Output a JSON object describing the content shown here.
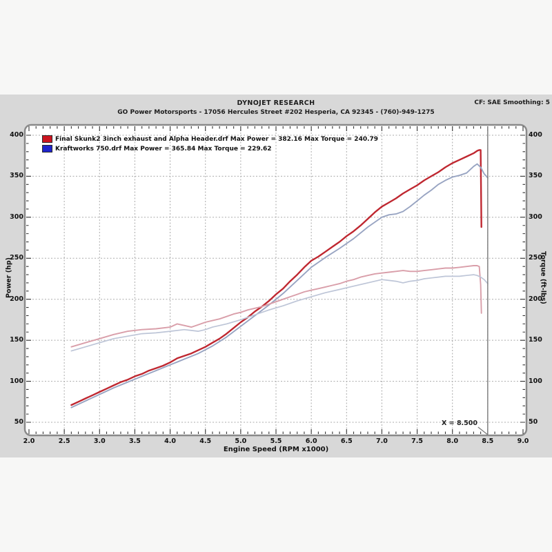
{
  "header": {
    "title": "DYNOJET RESEARCH",
    "subtitle": "GO Power Motorsports - 17056 Hercules Street #202 Hesperia, CA 92345 - (760)-949-1275",
    "meta": "CF: SAE  Smoothing: 5"
  },
  "legend": {
    "entries": [
      {
        "label": "Final Skunk2 3inch exhaust and Alpha Header.drf Max Power = 382.16 Max Torque = 240.79",
        "swatch": "#cc1420"
      },
      {
        "label": "Kraftworks 750.drf Max Power = 365.84 Max Torque = 229.62",
        "swatch": "#1f24cc"
      }
    ]
  },
  "colors": {
    "panel": "#d8d8d8",
    "plot_bg": "#ffffff",
    "frame": "#8a8a8a",
    "tick": "#343434",
    "grid": "#a9a9a9",
    "cursor": "#787878",
    "power_red": "#bf2730",
    "power_blue": "#98a4c2",
    "torque_red": "#d99ea9",
    "torque_blue": "#bdc5d7"
  },
  "cursor": {
    "label": "X = 8.500",
    "x": 8.5
  },
  "chart_data": {
    "type": "line",
    "title": "DYNOJET RESEARCH",
    "xlabel": "Engine Speed (RPM x1000)",
    "ylabel": "Power (hp)",
    "y2label": "Torque (ft-lbs)",
    "xlim": [
      2.0,
      9.0
    ],
    "ylim": [
      50,
      400
    ],
    "grid": true,
    "legend_position": "top-left",
    "x_ticks": [
      2.0,
      2.5,
      3.0,
      3.5,
      4.0,
      4.5,
      5.0,
      5.5,
      6.0,
      6.5,
      7.0,
      7.5,
      8.0,
      8.5,
      9.0
    ],
    "y_ticks": [
      50,
      100,
      150,
      200,
      250,
      300,
      350,
      400
    ],
    "series": [
      {
        "name": "Final Skunk2 3inch exhaust and Alpha Header - Power (hp)",
        "color": "#bf2730",
        "width": 2.4,
        "points": [
          [
            2.6,
            71
          ],
          [
            2.7,
            75
          ],
          [
            2.8,
            79
          ],
          [
            2.9,
            83
          ],
          [
            3.0,
            87
          ],
          [
            3.1,
            91
          ],
          [
            3.2,
            95
          ],
          [
            3.3,
            99
          ],
          [
            3.4,
            102
          ],
          [
            3.5,
            106
          ],
          [
            3.6,
            109
          ],
          [
            3.7,
            113
          ],
          [
            3.8,
            116
          ],
          [
            3.9,
            119
          ],
          [
            4.0,
            123
          ],
          [
            4.1,
            128
          ],
          [
            4.2,
            131
          ],
          [
            4.3,
            134
          ],
          [
            4.4,
            138
          ],
          [
            4.5,
            142
          ],
          [
            4.6,
            147
          ],
          [
            4.7,
            152
          ],
          [
            4.8,
            158
          ],
          [
            4.9,
            165
          ],
          [
            5.0,
            172
          ],
          [
            5.1,
            178
          ],
          [
            5.2,
            185
          ],
          [
            5.3,
            191
          ],
          [
            5.4,
            198
          ],
          [
            5.5,
            206
          ],
          [
            5.6,
            213
          ],
          [
            5.7,
            222
          ],
          [
            5.8,
            230
          ],
          [
            5.9,
            239
          ],
          [
            6.0,
            247
          ],
          [
            6.1,
            252
          ],
          [
            6.2,
            258
          ],
          [
            6.3,
            264
          ],
          [
            6.4,
            270
          ],
          [
            6.5,
            277
          ],
          [
            6.6,
            283
          ],
          [
            6.7,
            290
          ],
          [
            6.8,
            298
          ],
          [
            6.9,
            306
          ],
          [
            7.0,
            313
          ],
          [
            7.1,
            318
          ],
          [
            7.2,
            323
          ],
          [
            7.3,
            329
          ],
          [
            7.4,
            334
          ],
          [
            7.5,
            339
          ],
          [
            7.6,
            345
          ],
          [
            7.7,
            350
          ],
          [
            7.8,
            355
          ],
          [
            7.9,
            361
          ],
          [
            8.0,
            366
          ],
          [
            8.1,
            370
          ],
          [
            8.2,
            374
          ],
          [
            8.3,
            378
          ],
          [
            8.35,
            381
          ],
          [
            8.38,
            382
          ],
          [
            8.4,
            382
          ],
          [
            8.41,
            288
          ]
        ]
      },
      {
        "name": "Kraftworks 750 - Power (hp)",
        "color": "#98a4c2",
        "width": 1.9,
        "points": [
          [
            2.6,
            68
          ],
          [
            2.8,
            76
          ],
          [
            3.0,
            84
          ],
          [
            3.2,
            92
          ],
          [
            3.4,
            99
          ],
          [
            3.6,
            106
          ],
          [
            3.8,
            113
          ],
          [
            4.0,
            120
          ],
          [
            4.2,
            127
          ],
          [
            4.4,
            134
          ],
          [
            4.6,
            143
          ],
          [
            4.8,
            154
          ],
          [
            5.0,
            167
          ],
          [
            5.2,
            180
          ],
          [
            5.4,
            193
          ],
          [
            5.6,
            207
          ],
          [
            5.8,
            223
          ],
          [
            6.0,
            239
          ],
          [
            6.2,
            251
          ],
          [
            6.4,
            262
          ],
          [
            6.6,
            274
          ],
          [
            6.8,
            288
          ],
          [
            7.0,
            300
          ],
          [
            7.1,
            303
          ],
          [
            7.2,
            304
          ],
          [
            7.3,
            307
          ],
          [
            7.4,
            313
          ],
          [
            7.5,
            320
          ],
          [
            7.6,
            327
          ],
          [
            7.7,
            333
          ],
          [
            7.8,
            340
          ],
          [
            7.9,
            345
          ],
          [
            8.0,
            349
          ],
          [
            8.1,
            351
          ],
          [
            8.2,
            354
          ],
          [
            8.3,
            362
          ],
          [
            8.35,
            365
          ],
          [
            8.4,
            361
          ],
          [
            8.45,
            353
          ],
          [
            8.5,
            348
          ]
        ]
      },
      {
        "name": "Final Skunk2 3inch exhaust and Alpha Header - Torque (ft-lbs)",
        "color": "#d99ea9",
        "width": 1.9,
        "points": [
          [
            2.6,
            142
          ],
          [
            2.8,
            147
          ],
          [
            3.0,
            152
          ],
          [
            3.2,
            157
          ],
          [
            3.4,
            161
          ],
          [
            3.6,
            163
          ],
          [
            3.8,
            164
          ],
          [
            4.0,
            166
          ],
          [
            4.1,
            170
          ],
          [
            4.2,
            168
          ],
          [
            4.3,
            166
          ],
          [
            4.4,
            169
          ],
          [
            4.5,
            172
          ],
          [
            4.6,
            174
          ],
          [
            4.7,
            176
          ],
          [
            4.8,
            179
          ],
          [
            4.9,
            182
          ],
          [
            5.0,
            184
          ],
          [
            5.1,
            187
          ],
          [
            5.2,
            189
          ],
          [
            5.3,
            191
          ],
          [
            5.4,
            194
          ],
          [
            5.5,
            197
          ],
          [
            5.6,
            200
          ],
          [
            5.7,
            203
          ],
          [
            5.8,
            206
          ],
          [
            5.9,
            209
          ],
          [
            6.0,
            211
          ],
          [
            6.1,
            213
          ],
          [
            6.2,
            215
          ],
          [
            6.3,
            217
          ],
          [
            6.4,
            219
          ],
          [
            6.5,
            222
          ],
          [
            6.6,
            224
          ],
          [
            6.7,
            227
          ],
          [
            6.8,
            229
          ],
          [
            6.9,
            231
          ],
          [
            7.0,
            232
          ],
          [
            7.1,
            233
          ],
          [
            7.2,
            234
          ],
          [
            7.3,
            235
          ],
          [
            7.4,
            234
          ],
          [
            7.5,
            234
          ],
          [
            7.6,
            235
          ],
          [
            7.7,
            236
          ],
          [
            7.8,
            237
          ],
          [
            7.9,
            238
          ],
          [
            8.0,
            238
          ],
          [
            8.1,
            239
          ],
          [
            8.2,
            240
          ],
          [
            8.3,
            241
          ],
          [
            8.35,
            241
          ],
          [
            8.38,
            240
          ],
          [
            8.4,
            218
          ],
          [
            8.41,
            183
          ]
        ]
      },
      {
        "name": "Kraftworks 750 - Torque (ft-lbs)",
        "color": "#bdc5d7",
        "width": 1.7,
        "points": [
          [
            2.6,
            137
          ],
          [
            2.8,
            142
          ],
          [
            3.0,
            147
          ],
          [
            3.2,
            152
          ],
          [
            3.4,
            155
          ],
          [
            3.6,
            158
          ],
          [
            3.8,
            159
          ],
          [
            4.0,
            161
          ],
          [
            4.2,
            163
          ],
          [
            4.3,
            162
          ],
          [
            4.4,
            161
          ],
          [
            4.5,
            163
          ],
          [
            4.6,
            166
          ],
          [
            4.8,
            170
          ],
          [
            5.0,
            175
          ],
          [
            5.2,
            181
          ],
          [
            5.4,
            187
          ],
          [
            5.6,
            192
          ],
          [
            5.8,
            198
          ],
          [
            6.0,
            203
          ],
          [
            6.2,
            208
          ],
          [
            6.4,
            212
          ],
          [
            6.6,
            216
          ],
          [
            6.8,
            220
          ],
          [
            7.0,
            224
          ],
          [
            7.1,
            223
          ],
          [
            7.2,
            222
          ],
          [
            7.3,
            220
          ],
          [
            7.4,
            222
          ],
          [
            7.5,
            223
          ],
          [
            7.6,
            225
          ],
          [
            7.7,
            226
          ],
          [
            7.8,
            227
          ],
          [
            7.9,
            228
          ],
          [
            8.0,
            228
          ],
          [
            8.1,
            228
          ],
          [
            8.2,
            229
          ],
          [
            8.3,
            230
          ],
          [
            8.35,
            229
          ],
          [
            8.4,
            227
          ],
          [
            8.45,
            224
          ],
          [
            8.5,
            219
          ]
        ]
      }
    ]
  }
}
